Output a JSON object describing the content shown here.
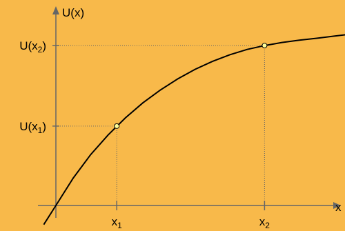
{
  "colors": {
    "background": "#f8b94a",
    "axis": "#666666",
    "curve": "#000000",
    "guide": "#666666",
    "point_fill": "#ffff99"
  },
  "chart_data": {
    "type": "line",
    "title": "",
    "ylabel": {
      "main": "U(x)"
    },
    "xlabel": {
      "main": "x"
    },
    "xlim": [
      -0.07,
      1.82
    ],
    "ylim": [
      -0.12,
      1.08
    ],
    "grid": false,
    "legend": "none",
    "series": [
      {
        "x": [
          -0.07,
          0,
          0.1,
          0.2,
          0.3,
          0.4,
          0.5,
          0.6,
          0.7,
          0.8,
          0.9,
          1.0,
          1.1,
          1.2,
          1.3,
          1.4,
          1.5,
          1.6,
          1.7,
          1.8
        ],
        "y": [
          -0.118,
          0,
          0.17,
          0.314,
          0.435,
          0.541,
          0.633,
          0.712,
          0.781,
          0.84,
          0.889,
          0.93,
          0.963,
          0.987,
          1.006,
          1.02,
          1.032,
          1.045,
          1.058,
          1.072
        ]
      }
    ],
    "points": [
      {
        "x": 0.35,
        "y": 0.49,
        "xlabel": {
          "main": "x",
          "sub": "1"
        },
        "ylabel": {
          "main": "U(x",
          "sub": "1",
          "close": ")"
        }
      },
      {
        "x": 1.2,
        "y": 0.987,
        "xlabel": {
          "main": "x",
          "sub": "2"
        },
        "ylabel": {
          "main": "U(x",
          "sub": "2",
          "close": ")"
        }
      }
    ]
  }
}
